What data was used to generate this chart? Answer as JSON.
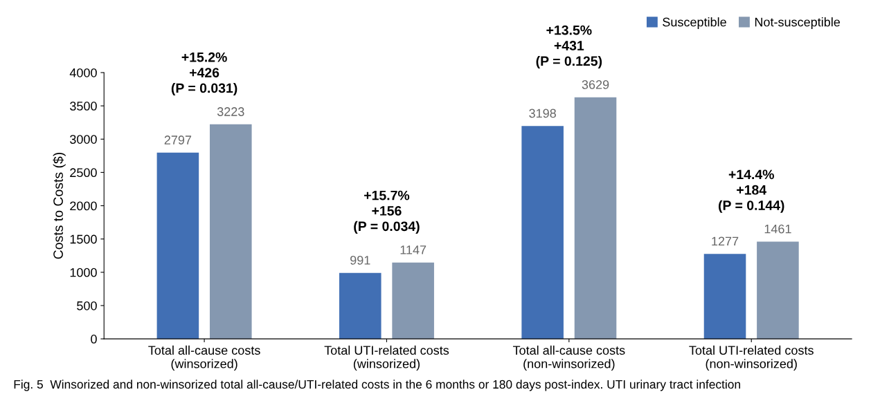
{
  "chart_data": {
    "type": "bar",
    "ylabel": "Costs to Costs ($)",
    "categories": [
      "Total all-cause costs\n(winsorized)",
      "Total UTI-related costs\n(winsorized)",
      "Total all-cause costs\n(non-winsorized)",
      "Total UTI-related costs\n(non-winsorized)"
    ],
    "series": [
      {
        "name": "Susceptible",
        "color": "#416fb4",
        "values": [
          2797,
          991,
          3198,
          1277
        ]
      },
      {
        "name": "Not-susceptible",
        "color": "#8598b0",
        "values": [
          3223,
          1147,
          3629,
          1461
        ]
      }
    ],
    "ylim": [
      0,
      4000
    ],
    "yticks": [
      0,
      500,
      1000,
      1500,
      2000,
      2500,
      3000,
      3500,
      4000
    ],
    "data_labels": true,
    "grid": false,
    "legend": "top right",
    "annotations": [
      "+15.2%\n+426\n(P = 0.031)",
      "+15.7%\n+156\n(P = 0.034)",
      "+13.5%\n+431\n(P = 0.125)",
      "+14.4%\n+184\n(P = 0.144)",
      "Fig. 5  Winsorized and non-winsorized total all-cause/UTI-related costs in the 6 months or 180 days post-index. UTI urinary tract infection"
    ]
  }
}
